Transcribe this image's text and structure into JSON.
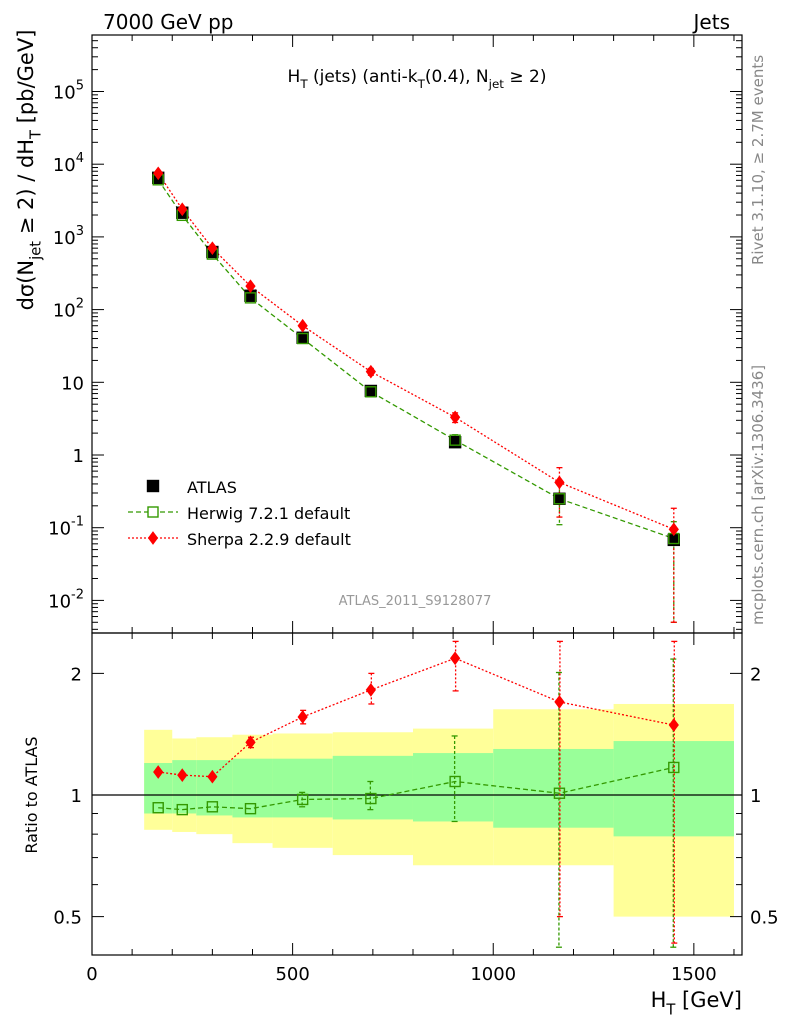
{
  "header": {
    "left": "7000 GeV pp",
    "right": "Jets"
  },
  "side_labels": {
    "rivet": "Rivet 3.1.10, ≥ 2.7M events",
    "mcplots": "mcplots.cern.ch [arXiv:1306.3436]"
  },
  "watermark": "ATLAS_2011_S9128077",
  "chart_data": [
    {
      "type": "scatter",
      "panel": "main",
      "title": "H_T (jets) (anti-k_T(0.4), N_jet ≥ 2)",
      "xlabel": "H_T [GeV]",
      "ylabel": "dσ(N_jet ≥ 2) / dH_T [pb/GeV]",
      "yscale": "log",
      "xlim": [
        0,
        1620
      ],
      "ylim": [
        0.004,
        800000
      ],
      "y_tick_labels": [
        "10^-2",
        "10^-1",
        "1",
        "10",
        "10^2",
        "10^3",
        "10^4",
        "10^5"
      ],
      "x_tick_labels": [
        "0",
        "500",
        "1000",
        "1500"
      ],
      "legend_position": "lower-left",
      "series": [
        {
          "name": "ATLAS",
          "style": "marker",
          "color": "#000000",
          "x": [
            165,
            225,
            300,
            395,
            525,
            695,
            905,
            1165,
            1450
          ],
          "y": [
            6500,
            2150,
            620,
            155,
            41,
            7.6,
            1.5,
            0.25,
            0.068
          ]
        },
        {
          "name": "Herwig 7.2.1 default",
          "style": "dashed-square",
          "color": "#339900",
          "x": [
            165,
            225,
            300,
            395,
            525,
            695,
            905,
            1165,
            1450
          ],
          "y": [
            6100,
            1980,
            580,
            145,
            40,
            7.4,
            1.6,
            0.25,
            0.071
          ],
          "err_low": [
            0,
            0,
            0,
            0,
            0,
            0,
            0.3,
            0.14,
            0.068
          ],
          "err_high": [
            0,
            0,
            0,
            0,
            0,
            0,
            0.3,
            0.14,
            0.05
          ]
        },
        {
          "name": "Sherpa 2.2.9 default",
          "style": "dotted-diamond",
          "color": "#ff0000",
          "x": [
            165,
            225,
            300,
            395,
            525,
            695,
            905,
            1165,
            1450
          ],
          "y": [
            7500,
            2400,
            700,
            210,
            60,
            14,
            3.3,
            0.42,
            0.095
          ],
          "err_low": [
            0,
            0,
            0,
            0,
            0,
            1.5,
            0.5,
            0.28,
            0.09
          ],
          "err_high": [
            0,
            0,
            0,
            0,
            0,
            1.5,
            0.5,
            0.25,
            0.09
          ]
        }
      ]
    },
    {
      "type": "scatter",
      "panel": "ratio",
      "xlabel": "H_T [GeV]",
      "ylabel": "Ratio to ATLAS",
      "yscale": "log",
      "xlim": [
        0,
        1620
      ],
      "ylim": [
        0.41,
        2.4
      ],
      "y_tick_labels": [
        "0.5",
        "1",
        "2"
      ],
      "bins": [
        [
          130,
          200
        ],
        [
          200,
          260
        ],
        [
          260,
          350
        ],
        [
          350,
          450
        ],
        [
          450,
          600
        ],
        [
          600,
          800
        ],
        [
          800,
          1000
        ],
        [
          1000,
          1300
        ],
        [
          1300,
          1600
        ]
      ],
      "band_inner": [
        [
          0.9,
          1.2
        ],
        [
          0.9,
          1.22
        ],
        [
          0.89,
          1.22
        ],
        [
          0.88,
          1.23
        ],
        [
          0.88,
          1.23
        ],
        [
          0.87,
          1.25
        ],
        [
          0.86,
          1.27
        ],
        [
          0.83,
          1.3
        ],
        [
          0.79,
          1.36
        ]
      ],
      "band_outer": [
        [
          0.82,
          1.45
        ],
        [
          0.81,
          1.38
        ],
        [
          0.8,
          1.39
        ],
        [
          0.76,
          1.41
        ],
        [
          0.74,
          1.42
        ],
        [
          0.71,
          1.43
        ],
        [
          0.67,
          1.46
        ],
        [
          0.67,
          1.63
        ],
        [
          0.5,
          1.68
        ]
      ],
      "series": [
        {
          "name": "Herwig 7.2.1 default",
          "color": "#339900",
          "x": [
            165,
            225,
            300,
            395,
            525,
            695,
            905,
            1165,
            1450
          ],
          "y": [
            0.93,
            0.92,
            0.935,
            0.925,
            0.975,
            0.98,
            1.08,
            1.01,
            1.17
          ],
          "err_low": [
            0,
            0,
            0,
            0,
            0.04,
            0.06,
            0.22,
            0.59,
            0.75
          ],
          "err_high": [
            0,
            0,
            0,
            0,
            0.04,
            0.1,
            0.32,
            1.0,
            1.0
          ]
        },
        {
          "name": "Sherpa 2.2.9 default",
          "color": "#ff0000",
          "x": [
            165,
            225,
            300,
            395,
            525,
            695,
            905,
            1165,
            1450
          ],
          "y": [
            1.14,
            1.12,
            1.11,
            1.35,
            1.56,
            1.82,
            2.18,
            1.7,
            1.49
          ],
          "err_low": [
            0,
            0,
            0,
            0.04,
            0.06,
            0.14,
            0.37,
            1.2,
            1.06
          ],
          "err_high": [
            0,
            0,
            0,
            0.04,
            0.06,
            0.18,
            0.45,
            1.0,
            1.0
          ]
        }
      ]
    }
  ]
}
